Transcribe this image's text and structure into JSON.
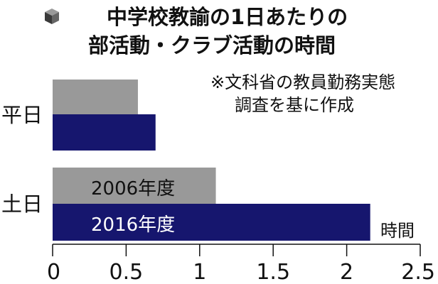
{
  "title": {
    "icon": "cube-icon",
    "line1": "中学校教諭の1日あたりの",
    "line2": "部活動・クラブ活動の時間"
  },
  "note": {
    "line1": "※文科省の教員勤務実態",
    "line2": "調査を基に作成"
  },
  "chart_data": {
    "type": "bar",
    "orientation": "horizontal",
    "categories": [
      "平日",
      "土日"
    ],
    "series": [
      {
        "name": "2006年度",
        "values": [
          0.58,
          1.11
        ],
        "color": "#999999"
      },
      {
        "name": "2016年度",
        "values": [
          0.7,
          2.16
        ],
        "color": "#16166e"
      }
    ],
    "xlim": [
      0,
      2.5
    ],
    "xticks": [
      "0",
      "0.5",
      "1",
      "1.5",
      "2",
      "2.5"
    ],
    "xlabel": "時間",
    "legend": "inside-bars",
    "grid": false
  }
}
